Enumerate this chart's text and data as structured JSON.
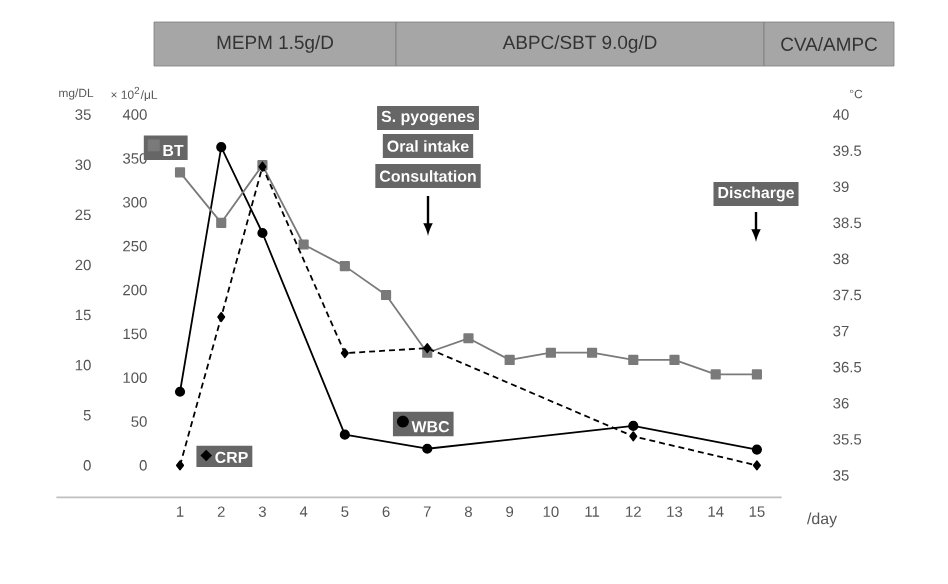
{
  "chart_data": {
    "type": "line",
    "xlabel": "/day",
    "ylabel": "mg/DL",
    "y2label": "°C",
    "y3label": "× 10$^{2}$/μL",
    "xlim": [
      -2,
      15.6
    ],
    "xticks": [
      1,
      2,
      3,
      4,
      5,
      6,
      7,
      8,
      9,
      10,
      11,
      12,
      13,
      14,
      15
    ],
    "ylim": [
      0,
      35
    ],
    "yticks": [
      0,
      5,
      10,
      15,
      20,
      25,
      30,
      35
    ],
    "y2lim": [
      35,
      40
    ],
    "y2ticks": [
      35,
      35.5,
      36,
      36.5,
      37,
      37.5,
      38,
      38.5,
      39,
      39.5,
      40
    ],
    "y3lim": [
      0,
      400
    ],
    "y3ticks": [
      0,
      50,
      100,
      150,
      200,
      250,
      300,
      350,
      400
    ],
    "legend": "left",
    "grid": false,
    "series": [
      {
        "name": "BT",
        "color": "#7a7a7a",
        "axis": "y2",
        "marker": "square",
        "line_style": "solid",
        "x": [
          1,
          2,
          3,
          4,
          5,
          6,
          7,
          8,
          9,
          10,
          11,
          12,
          13,
          14,
          15
        ],
        "values": [
          39.2,
          38.5,
          39.3,
          38.2,
          37.9,
          37.5,
          36.7,
          36.9,
          36.6,
          36.7,
          36.7,
          36.6,
          36.6,
          36.4,
          36.4
        ]
      },
      {
        "name": "CRP",
        "color": "#000000",
        "axis": "y",
        "marker": "diamond",
        "line_style": "dashed",
        "x": [
          1,
          2,
          3,
          5,
          7,
          12,
          15
        ],
        "values": [
          0,
          14.8,
          29.8,
          11.2,
          11.7,
          2.9,
          0
        ]
      },
      {
        "name": "WBC",
        "color": "#000000",
        "axis": "y3",
        "marker": "circle",
        "line_style": "solid",
        "x": [
          1,
          2,
          3,
          5,
          7,
          12,
          15
        ],
        "values": [
          84,
          363,
          265,
          35,
          19,
          45,
          18
        ]
      }
    ],
    "annotations": [
      "MEPM 1.5g/D",
      "ABPC/SBT 9.0g/D",
      "CVA/AMPC",
      "S. pyogenes",
      "Oral intake",
      "Consultation",
      "Discharge"
    ]
  }
}
